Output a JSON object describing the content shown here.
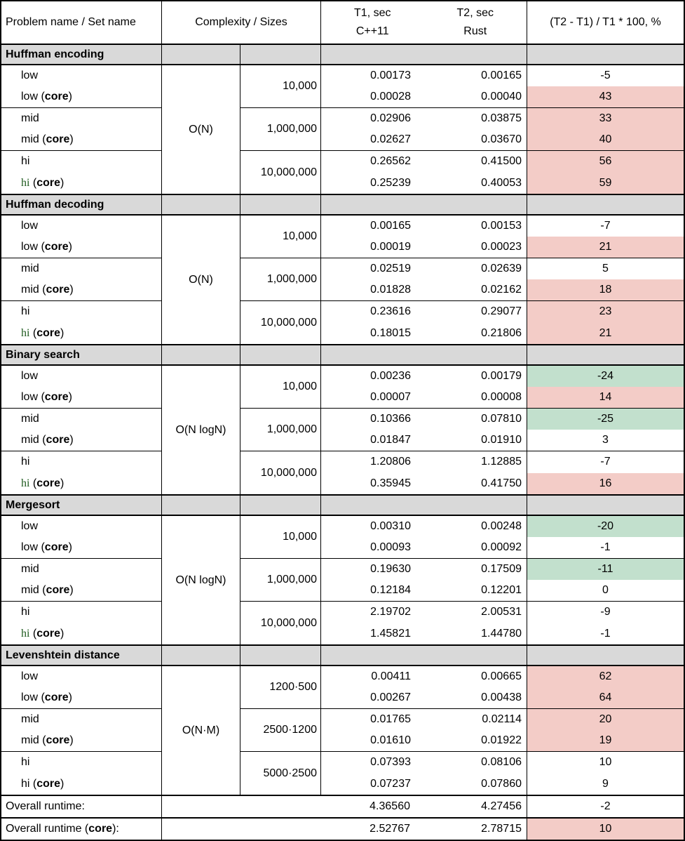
{
  "strings": {
    "core": "core"
  },
  "colors": {
    "section_bg": "#d9d9d9",
    "pink": "#f3ccc7",
    "green": "#c2e0cd",
    "white": "transparent",
    "hi_core_text": "#1e5b1e"
  },
  "header": {
    "problem": "Problem name / Set name",
    "complexity": "Complexity / Sizes",
    "t1": {
      "line1": "T1, sec",
      "line2": "C++11"
    },
    "t2": {
      "line1": "T2, sec",
      "line2": "Rust"
    },
    "delta": "(T2 - T1) / T1 * 100, %"
  },
  "sections": [
    {
      "title": "Huffman encoding",
      "complexity": "O(N)",
      "groups": [
        {
          "size": "10,000",
          "rows": [
            {
              "label": "low",
              "core": false,
              "label_style": "normal",
              "t1": "0.00173",
              "t2": "0.00165",
              "pct": "-5",
              "pct_bg": "white"
            },
            {
              "label": "low",
              "core": true,
              "label_style": "normal",
              "t1": "0.00028",
              "t2": "0.00040",
              "pct": "43",
              "pct_bg": "pink"
            }
          ]
        },
        {
          "size": "1,000,000",
          "rows": [
            {
              "label": "mid",
              "core": false,
              "label_style": "normal",
              "t1": "0.02906",
              "t2": "0.03875",
              "pct": "33",
              "pct_bg": "pink"
            },
            {
              "label": "mid",
              "core": true,
              "label_style": "normal",
              "t1": "0.02627",
              "t2": "0.03670",
              "pct": "40",
              "pct_bg": "pink"
            }
          ]
        },
        {
          "size": "10,000,000",
          "rows": [
            {
              "label": "hi",
              "core": false,
              "label_style": "normal",
              "t1": "0.26562",
              "t2": "0.41500",
              "pct": "56",
              "pct_bg": "pink"
            },
            {
              "label": "hi",
              "core": true,
              "label_style": "green-serif",
              "t1": "0.25239",
              "t2": "0.40053",
              "pct": "59",
              "pct_bg": "pink"
            }
          ]
        }
      ]
    },
    {
      "title": "Huffman decoding",
      "complexity": "O(N)",
      "groups": [
        {
          "size": "10,000",
          "rows": [
            {
              "label": "low",
              "core": false,
              "label_style": "normal",
              "t1": "0.00165",
              "t2": "0.00153",
              "pct": "-7",
              "pct_bg": "white"
            },
            {
              "label": "low",
              "core": true,
              "label_style": "normal",
              "t1": "0.00019",
              "t2": "0.00023",
              "pct": "21",
              "pct_bg": "pink"
            }
          ]
        },
        {
          "size": "1,000,000",
          "rows": [
            {
              "label": "mid",
              "core": false,
              "label_style": "normal",
              "t1": "0.02519",
              "t2": "0.02639",
              "pct": "5",
              "pct_bg": "white"
            },
            {
              "label": "mid",
              "core": true,
              "label_style": "normal",
              "t1": "0.01828",
              "t2": "0.02162",
              "pct": "18",
              "pct_bg": "pink"
            }
          ]
        },
        {
          "size": "10,000,000",
          "rows": [
            {
              "label": "hi",
              "core": false,
              "label_style": "normal",
              "t1": "0.23616",
              "t2": "0.29077",
              "pct": "23",
              "pct_bg": "pink"
            },
            {
              "label": "hi",
              "core": true,
              "label_style": "green-serif",
              "t1": "0.18015",
              "t2": "0.21806",
              "pct": "21",
              "pct_bg": "pink"
            }
          ]
        }
      ]
    },
    {
      "title": "Binary search",
      "complexity": "O(N logN)",
      "groups": [
        {
          "size": "10,000",
          "rows": [
            {
              "label": "low",
              "core": false,
              "label_style": "normal",
              "t1": "0.00236",
              "t2": "0.00179",
              "pct": "-24",
              "pct_bg": "green"
            },
            {
              "label": "low",
              "core": true,
              "label_style": "normal",
              "t1": "0.00007",
              "t2": "0.00008",
              "pct": "14",
              "pct_bg": "pink"
            }
          ]
        },
        {
          "size": "1,000,000",
          "rows": [
            {
              "label": "mid",
              "core": false,
              "label_style": "normal",
              "t1": "0.10366",
              "t2": "0.07810",
              "pct": "-25",
              "pct_bg": "green"
            },
            {
              "label": "mid",
              "core": true,
              "label_style": "normal",
              "t1": "0.01847",
              "t2": "0.01910",
              "pct": "3",
              "pct_bg": "white"
            }
          ]
        },
        {
          "size": "10,000,000",
          "rows": [
            {
              "label": "hi",
              "core": false,
              "label_style": "normal",
              "t1": "1.20806",
              "t2": "1.12885",
              "pct": "-7",
              "pct_bg": "white"
            },
            {
              "label": "hi",
              "core": true,
              "label_style": "green-serif",
              "t1": "0.35945",
              "t2": "0.41750",
              "pct": "16",
              "pct_bg": "pink"
            }
          ]
        }
      ]
    },
    {
      "title": "Mergesort",
      "complexity": "O(N logN)",
      "groups": [
        {
          "size": "10,000",
          "rows": [
            {
              "label": "low",
              "core": false,
              "label_style": "normal",
              "t1": "0.00310",
              "t2": "0.00248",
              "pct": "-20",
              "pct_bg": "green"
            },
            {
              "label": "low",
              "core": true,
              "label_style": "normal",
              "t1": "0.00093",
              "t2": "0.00092",
              "pct": "-1",
              "pct_bg": "white"
            }
          ]
        },
        {
          "size": "1,000,000",
          "rows": [
            {
              "label": "mid",
              "core": false,
              "label_style": "normal",
              "t1": "0.19630",
              "t2": "0.17509",
              "pct": "-11",
              "pct_bg": "green"
            },
            {
              "label": "mid",
              "core": true,
              "label_style": "normal",
              "t1": "0.12184",
              "t2": "0.12201",
              "pct": "0",
              "pct_bg": "white"
            }
          ]
        },
        {
          "size": "10,000,000",
          "rows": [
            {
              "label": "hi",
              "core": false,
              "label_style": "normal",
              "t1": "2.19702",
              "t2": "2.00531",
              "pct": "-9",
              "pct_bg": "white"
            },
            {
              "label": "hi",
              "core": true,
              "label_style": "green-serif",
              "t1": "1.45821",
              "t2": "1.44780",
              "pct": "-1",
              "pct_bg": "white"
            }
          ]
        }
      ]
    },
    {
      "title": "Levenshtein distance",
      "complexity": "O(N·M)",
      "groups": [
        {
          "size": "1200·500",
          "rows": [
            {
              "label": "low",
              "core": false,
              "label_style": "normal",
              "t1": "0.00411",
              "t2": "0.00665",
              "pct": "62",
              "pct_bg": "pink"
            },
            {
              "label": "low",
              "core": true,
              "label_style": "normal",
              "t1": "0.00267",
              "t2": "0.00438",
              "pct": "64",
              "pct_bg": "pink"
            }
          ]
        },
        {
          "size": "2500·1200",
          "rows": [
            {
              "label": "mid",
              "core": false,
              "label_style": "normal",
              "t1": "0.01765",
              "t2": "0.02114",
              "pct": "20",
              "pct_bg": "pink"
            },
            {
              "label": "mid",
              "core": true,
              "label_style": "normal",
              "t1": "0.01610",
              "t2": "0.01922",
              "pct": "19",
              "pct_bg": "pink"
            }
          ]
        },
        {
          "size": "5000·2500",
          "rows": [
            {
              "label": "hi",
              "core": false,
              "label_style": "normal",
              "t1": "0.07393",
              "t2": "0.08106",
              "pct": "10",
              "pct_bg": "white"
            },
            {
              "label": "hi",
              "core": true,
              "label_style": "normal",
              "t1": "0.07237",
              "t2": "0.07860",
              "pct": "9",
              "pct_bg": "white"
            }
          ]
        }
      ]
    }
  ],
  "footer": {
    "rows": [
      {
        "label": "Overall runtime",
        "core": false,
        "suffix": ":",
        "t1": "4.36560",
        "t2": "4.27456",
        "pct": "-2",
        "pct_bg": "white"
      },
      {
        "label": "Overall runtime",
        "core": true,
        "suffix": ":",
        "t1": "2.52767",
        "t2": "2.78715",
        "pct": "10",
        "pct_bg": "pink"
      }
    ]
  }
}
